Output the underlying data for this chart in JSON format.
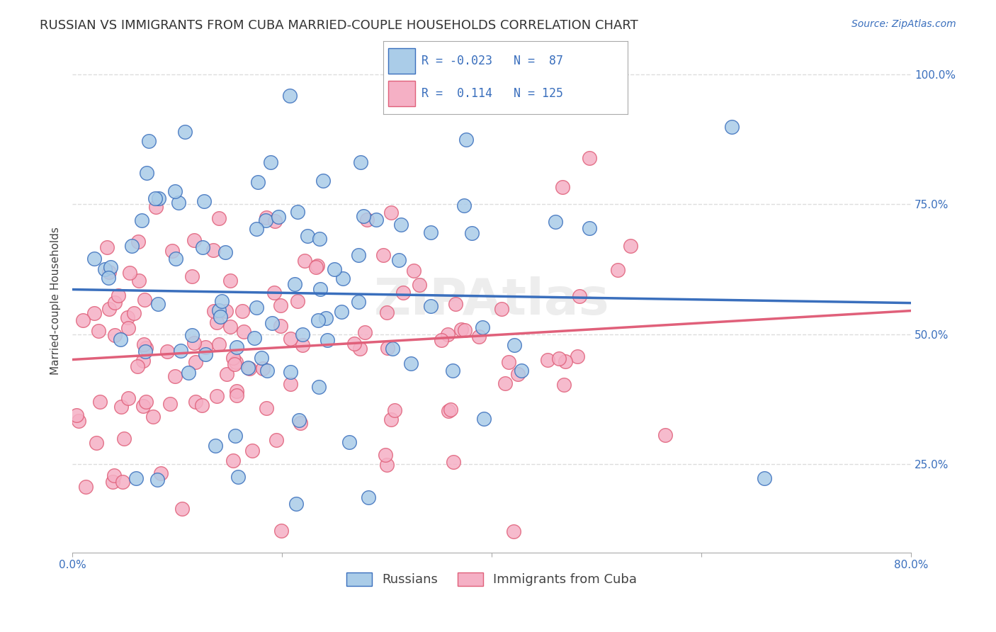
{
  "title": "RUSSIAN VS IMMIGRANTS FROM CUBA MARRIED-COUPLE HOUSEHOLDS CORRELATION CHART",
  "source": "Source: ZipAtlas.com",
  "ylabel": "Married-couple Households",
  "ytick_values": [
    0.25,
    0.5,
    0.75,
    1.0
  ],
  "xmin": 0.0,
  "xmax": 0.8,
  "ymin": 0.08,
  "ymax": 1.05,
  "russians_R": -0.023,
  "russians_N": 87,
  "cuba_R": 0.114,
  "cuba_N": 125,
  "blue_line_color": "#3a6fbd",
  "pink_line_color": "#e0607a",
  "blue_scatter_color": "#aacce8",
  "pink_scatter_color": "#f5b0c5",
  "watermark_text": "ZIPAtlas",
  "grid_color": "#dddddd",
  "background_color": "#ffffff",
  "title_fontsize": 13,
  "source_fontsize": 10,
  "axis_label_fontsize": 11,
  "tick_fontsize": 11,
  "legend_fontsize": 13
}
